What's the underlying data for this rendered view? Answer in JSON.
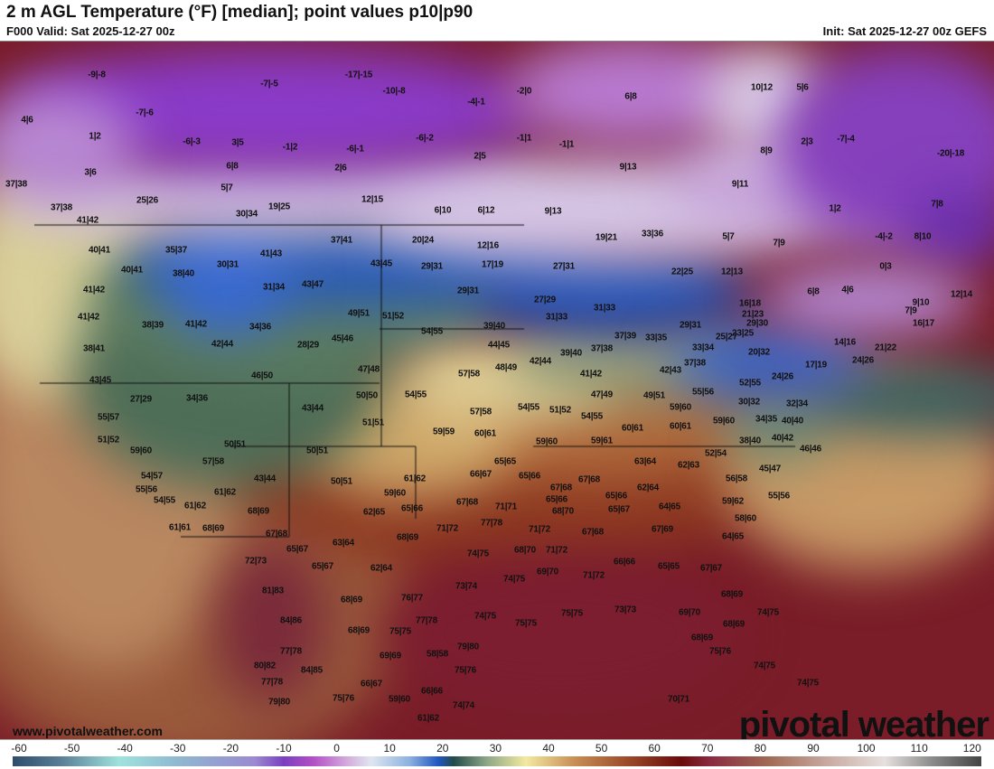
{
  "header": {
    "title": "2 m AGL Temperature (°F) [median]; point values p10|p90",
    "valid": "F000 Valid: Sat 2025-12-27 00z",
    "init": "Init: Sat 2025-12-27 00z GEFS"
  },
  "branding": {
    "website": "www.pivotalweather.com",
    "logo": "pivotal weather"
  },
  "colorbar": {
    "unit": "°F",
    "ticks": [
      "-60",
      "-50",
      "-40",
      "-30",
      "-20",
      "-10",
      "0",
      "10",
      "20",
      "30",
      "40",
      "50",
      "60",
      "70",
      "80",
      "90",
      "100",
      "110",
      "120"
    ],
    "range": [
      -60,
      120
    ]
  },
  "point_values": [
    "-9|-8",
    "-7|-5",
    "-17|-15",
    "-10|-8",
    "-2|0",
    "6|8",
    "10|12",
    "5|6",
    "4|6",
    "-7|-6",
    "-4|-1",
    "-6|-3",
    "3|5",
    "-1|2",
    "-6|-1",
    "-6|-2",
    "-1|1",
    "-1|1",
    "2|3",
    "-7|-4",
    "-20|-18",
    "1|2",
    "3|6",
    "6|8",
    "2|6",
    "2|5",
    "9|13",
    "8|9",
    "9|11",
    "37|38",
    "5|7",
    "25|26",
    "12|15",
    "30|34",
    "19|25",
    "37|38",
    "41|42",
    "6|10",
    "6|12",
    "9|13",
    "1|2",
    "7|8",
    "20|24",
    "12|16",
    "19|21",
    "33|36",
    "5|7",
    "7|9",
    "-4|-2",
    "8|10",
    "40|41",
    "35|37",
    "37|41",
    "41|43",
    "30|31",
    "40|41",
    "38|40",
    "43|45",
    "29|31",
    "17|19",
    "27|31",
    "22|25",
    "12|13",
    "0|3",
    "41|42",
    "31|34",
    "43|47",
    "29|31",
    "27|29",
    "16|18",
    "6|8",
    "4|6",
    "12|14",
    "9|10",
    "41|42",
    "38|39",
    "41|42",
    "34|36",
    "49|51",
    "51|52",
    "31|33",
    "31|33",
    "21|23",
    "7|9",
    "16|17",
    "29|30",
    "29|31",
    "39|40",
    "54|55",
    "28|29",
    "45|46",
    "42|44",
    "38|41",
    "23|25",
    "14|16",
    "21|22",
    "37|39",
    "33|35",
    "25|27",
    "44|45",
    "37|38",
    "33|34",
    "20|32",
    "39|40",
    "42|44",
    "48|49",
    "57|58",
    "41|42",
    "37|38",
    "24|26",
    "17|19",
    "42|43",
    "46|50",
    "47|48",
    "43|45",
    "24|26",
    "52|55",
    "50|50",
    "27|29",
    "34|36",
    "54|55",
    "47|49",
    "49|51",
    "55|56",
    "30|32",
    "32|34",
    "43|44",
    "54|55",
    "51|52",
    "57|58",
    "59|60",
    "55|57",
    "51|51",
    "54|55",
    "34|35",
    "40|40",
    "59|60",
    "60|61",
    "59|59",
    "60|61",
    "51|52",
    "60|61",
    "59|60",
    "59|61",
    "38|40",
    "40|42",
    "46|46",
    "50|51",
    "50|51",
    "59|60",
    "52|54",
    "63|64",
    "62|63",
    "65|65",
    "45|47",
    "57|58",
    "54|57",
    "66|67",
    "65|66",
    "61|62",
    "56|58",
    "43|44",
    "61|62",
    "50|51",
    "67|68",
    "67|68",
    "62|64",
    "55|56",
    "59|60",
    "65|66",
    "55|56",
    "59|62",
    "54|55",
    "61|62",
    "67|68",
    "65|66",
    "71|71",
    "68|70",
    "62|65",
    "65|66",
    "65|67",
    "64|65",
    "58|60",
    "68|69",
    "61|61",
    "68|69",
    "67|68",
    "77|78",
    "71|72",
    "71|72",
    "67|68",
    "67|69",
    "64|65",
    "68|69",
    "65|67",
    "63|64",
    "72|73",
    "65|67",
    "62|64",
    "74|75",
    "68|70",
    "71|72",
    "74|75",
    "69|70",
    "71|72",
    "66|66",
    "65|65",
    "67|67",
    "73|74",
    "81|83",
    "68|69",
    "76|77",
    "68|69",
    "84|86",
    "77|78",
    "74|75",
    "75|75",
    "75|75",
    "73|73",
    "68|69",
    "75|75",
    "69|70",
    "68|69",
    "74|75",
    "58|58",
    "79|80",
    "77|78",
    "69|69",
    "68|69",
    "75|76",
    "80|82",
    "84|85",
    "75|76",
    "74|75",
    "77|78",
    "66|67",
    "66|66",
    "74|75",
    "79|80",
    "75|76",
    "59|60",
    "74|74",
    "70|71",
    "61|62"
  ]
}
